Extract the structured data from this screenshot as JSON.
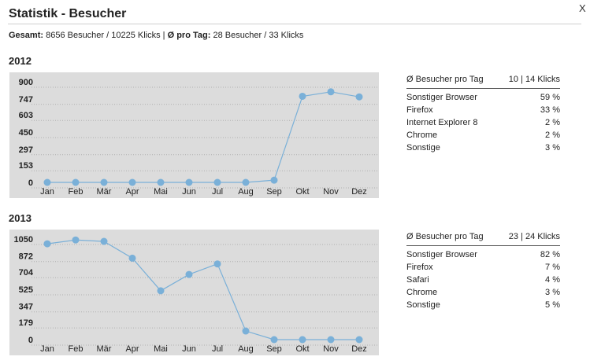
{
  "window": {
    "title": "Statistik - Besucher",
    "close_label": "X"
  },
  "summary": {
    "total_label": "Gesamt:",
    "total_value": " 8656 Besucher / 10225 Klicks | ",
    "perday_label": "Ø pro Tag:",
    "perday_value": " 28 Besucher / 33 Klicks"
  },
  "years": [
    {
      "year": "2012",
      "stats_header": {
        "label": "Ø Besucher pro Tag",
        "value": "10 | 14 Klicks"
      },
      "browsers": [
        {
          "name": "Sonstiger Browser",
          "share": "59 %"
        },
        {
          "name": "Firefox",
          "share": "33 %"
        },
        {
          "name": "Internet Explorer 8",
          "share": "2 %"
        },
        {
          "name": "Chrome",
          "share": "2 %"
        },
        {
          "name": "Sonstige",
          "share": "3 %"
        }
      ]
    },
    {
      "year": "2013",
      "stats_header": {
        "label": "Ø Besucher pro Tag",
        "value": "23 | 24 Klicks"
      },
      "browsers": [
        {
          "name": "Sonstiger Browser",
          "share": "82 %"
        },
        {
          "name": "Firefox",
          "share": "7 %"
        },
        {
          "name": "Safari",
          "share": "4 %"
        },
        {
          "name": "Chrome",
          "share": "3 %"
        },
        {
          "name": "Sonstige",
          "share": "5 %"
        }
      ]
    }
  ],
  "chart_data": [
    {
      "type": "line",
      "title": "2012",
      "categories": [
        "Jan",
        "Feb",
        "Mär",
        "Apr",
        "Mai",
        "Jun",
        "Jul",
        "Aug",
        "Sep",
        "Okt",
        "Nov",
        "Dez"
      ],
      "yticks": [
        0,
        153,
        297,
        450,
        603,
        747,
        900
      ],
      "ylim": [
        0,
        900
      ],
      "values": [
        0,
        0,
        0,
        0,
        0,
        0,
        0,
        0,
        20,
        770,
        810,
        765
      ],
      "grid": true,
      "color": "#7ab0d8"
    },
    {
      "type": "line",
      "title": "2013",
      "categories": [
        "Jan",
        "Feb",
        "Mär",
        "Apr",
        "Mai",
        "Jun",
        "Jul",
        "Aug",
        "Sep",
        "Okt",
        "Nov",
        "Dez"
      ],
      "yticks": [
        0,
        179,
        347,
        525,
        704,
        872,
        1050
      ],
      "ylim": [
        0,
        1050
      ],
      "values": [
        1000,
        1040,
        1025,
        850,
        510,
        680,
        790,
        90,
        0,
        0,
        0,
        0
      ],
      "grid": true,
      "color": "#7ab0d8"
    }
  ]
}
